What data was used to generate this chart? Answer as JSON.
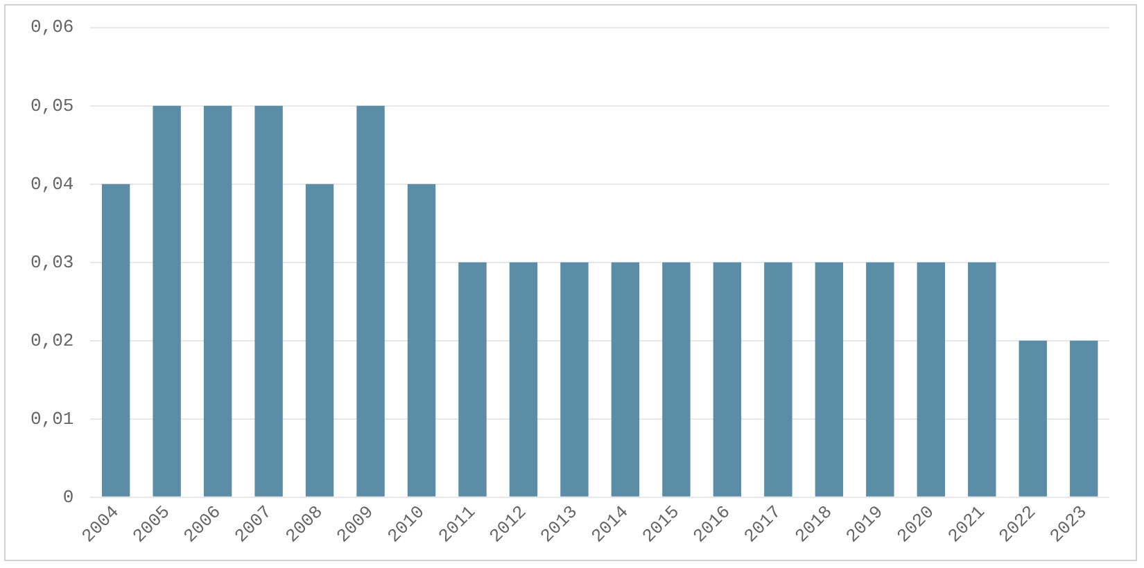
{
  "chart_data": {
    "type": "bar",
    "categories": [
      "2004",
      "2005",
      "2006",
      "2007",
      "2008",
      "2009",
      "2010",
      "2011",
      "2012",
      "2013",
      "2014",
      "2015",
      "2016",
      "2017",
      "2018",
      "2019",
      "2020",
      "2021",
      "2022",
      "2023"
    ],
    "values": [
      0.04,
      0.05,
      0.05,
      0.05,
      0.04,
      0.05,
      0.04,
      0.03,
      0.03,
      0.03,
      0.03,
      0.03,
      0.03,
      0.03,
      0.03,
      0.03,
      0.03,
      0.03,
      0.02,
      0.02
    ],
    "color": "#5b8ea6",
    "ylim": [
      0,
      0.06
    ],
    "yticks": [
      0,
      {
        "value": 0.01,
        "label": "0,01"
      },
      {
        "value": 0.02,
        "label": "0,02"
      },
      {
        "value": 0.03,
        "label": "0,03"
      },
      {
        "value": 0.04,
        "label": "0,04"
      },
      {
        "value": 0.05,
        "label": "0,05"
      },
      {
        "value": 0.06,
        "label": "0,06"
      }
    ],
    "grid": "y",
    "legend": false
  }
}
